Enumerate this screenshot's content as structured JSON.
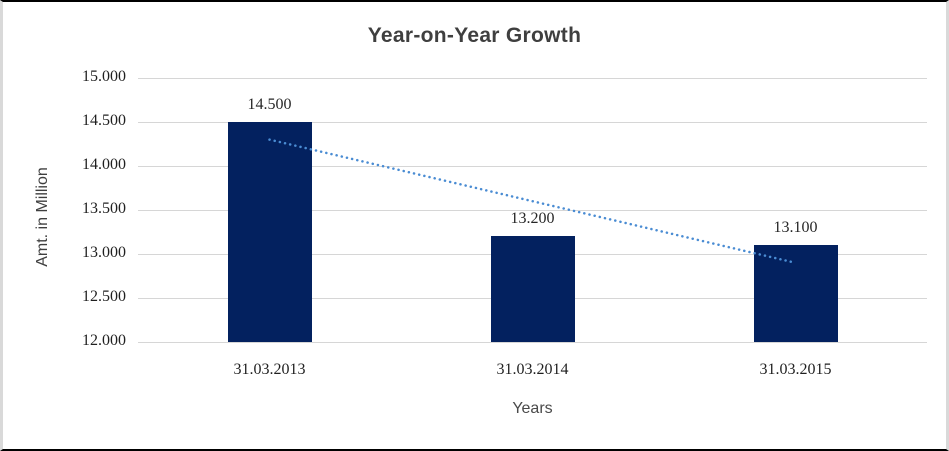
{
  "chart_data": {
    "type": "bar",
    "title": "Year-on-Year Growth",
    "xlabel": "Years",
    "ylabel": "Amt. in Million",
    "categories": [
      "31.03.2013",
      "31.03.2014",
      "31.03.2015"
    ],
    "values": [
      14.5,
      13.2,
      13.1
    ],
    "value_labels": [
      "14.500",
      "13.200",
      "13.100"
    ],
    "ylim": [
      12.0,
      15.0
    ],
    "ytick_step": 0.5,
    "ytick_labels": [
      "12.000",
      "12.500",
      "13.000",
      "13.500",
      "14.000",
      "14.500",
      "15.000"
    ],
    "grid": true,
    "legend": "none",
    "trendline": {
      "type": "linear",
      "style": "dotted",
      "endpoint_values": [
        14.3,
        12.9
      ]
    },
    "colors": {
      "bar": "#03215f",
      "trendline": "#4a8cd3",
      "gridline": "#d6d6d6",
      "title": "#3f3f3f",
      "tick_text": "#1f1f1f",
      "frame_top_bottom": "#000000",
      "frame_sides": "#d9d9d9",
      "background": "#ffffff"
    }
  }
}
